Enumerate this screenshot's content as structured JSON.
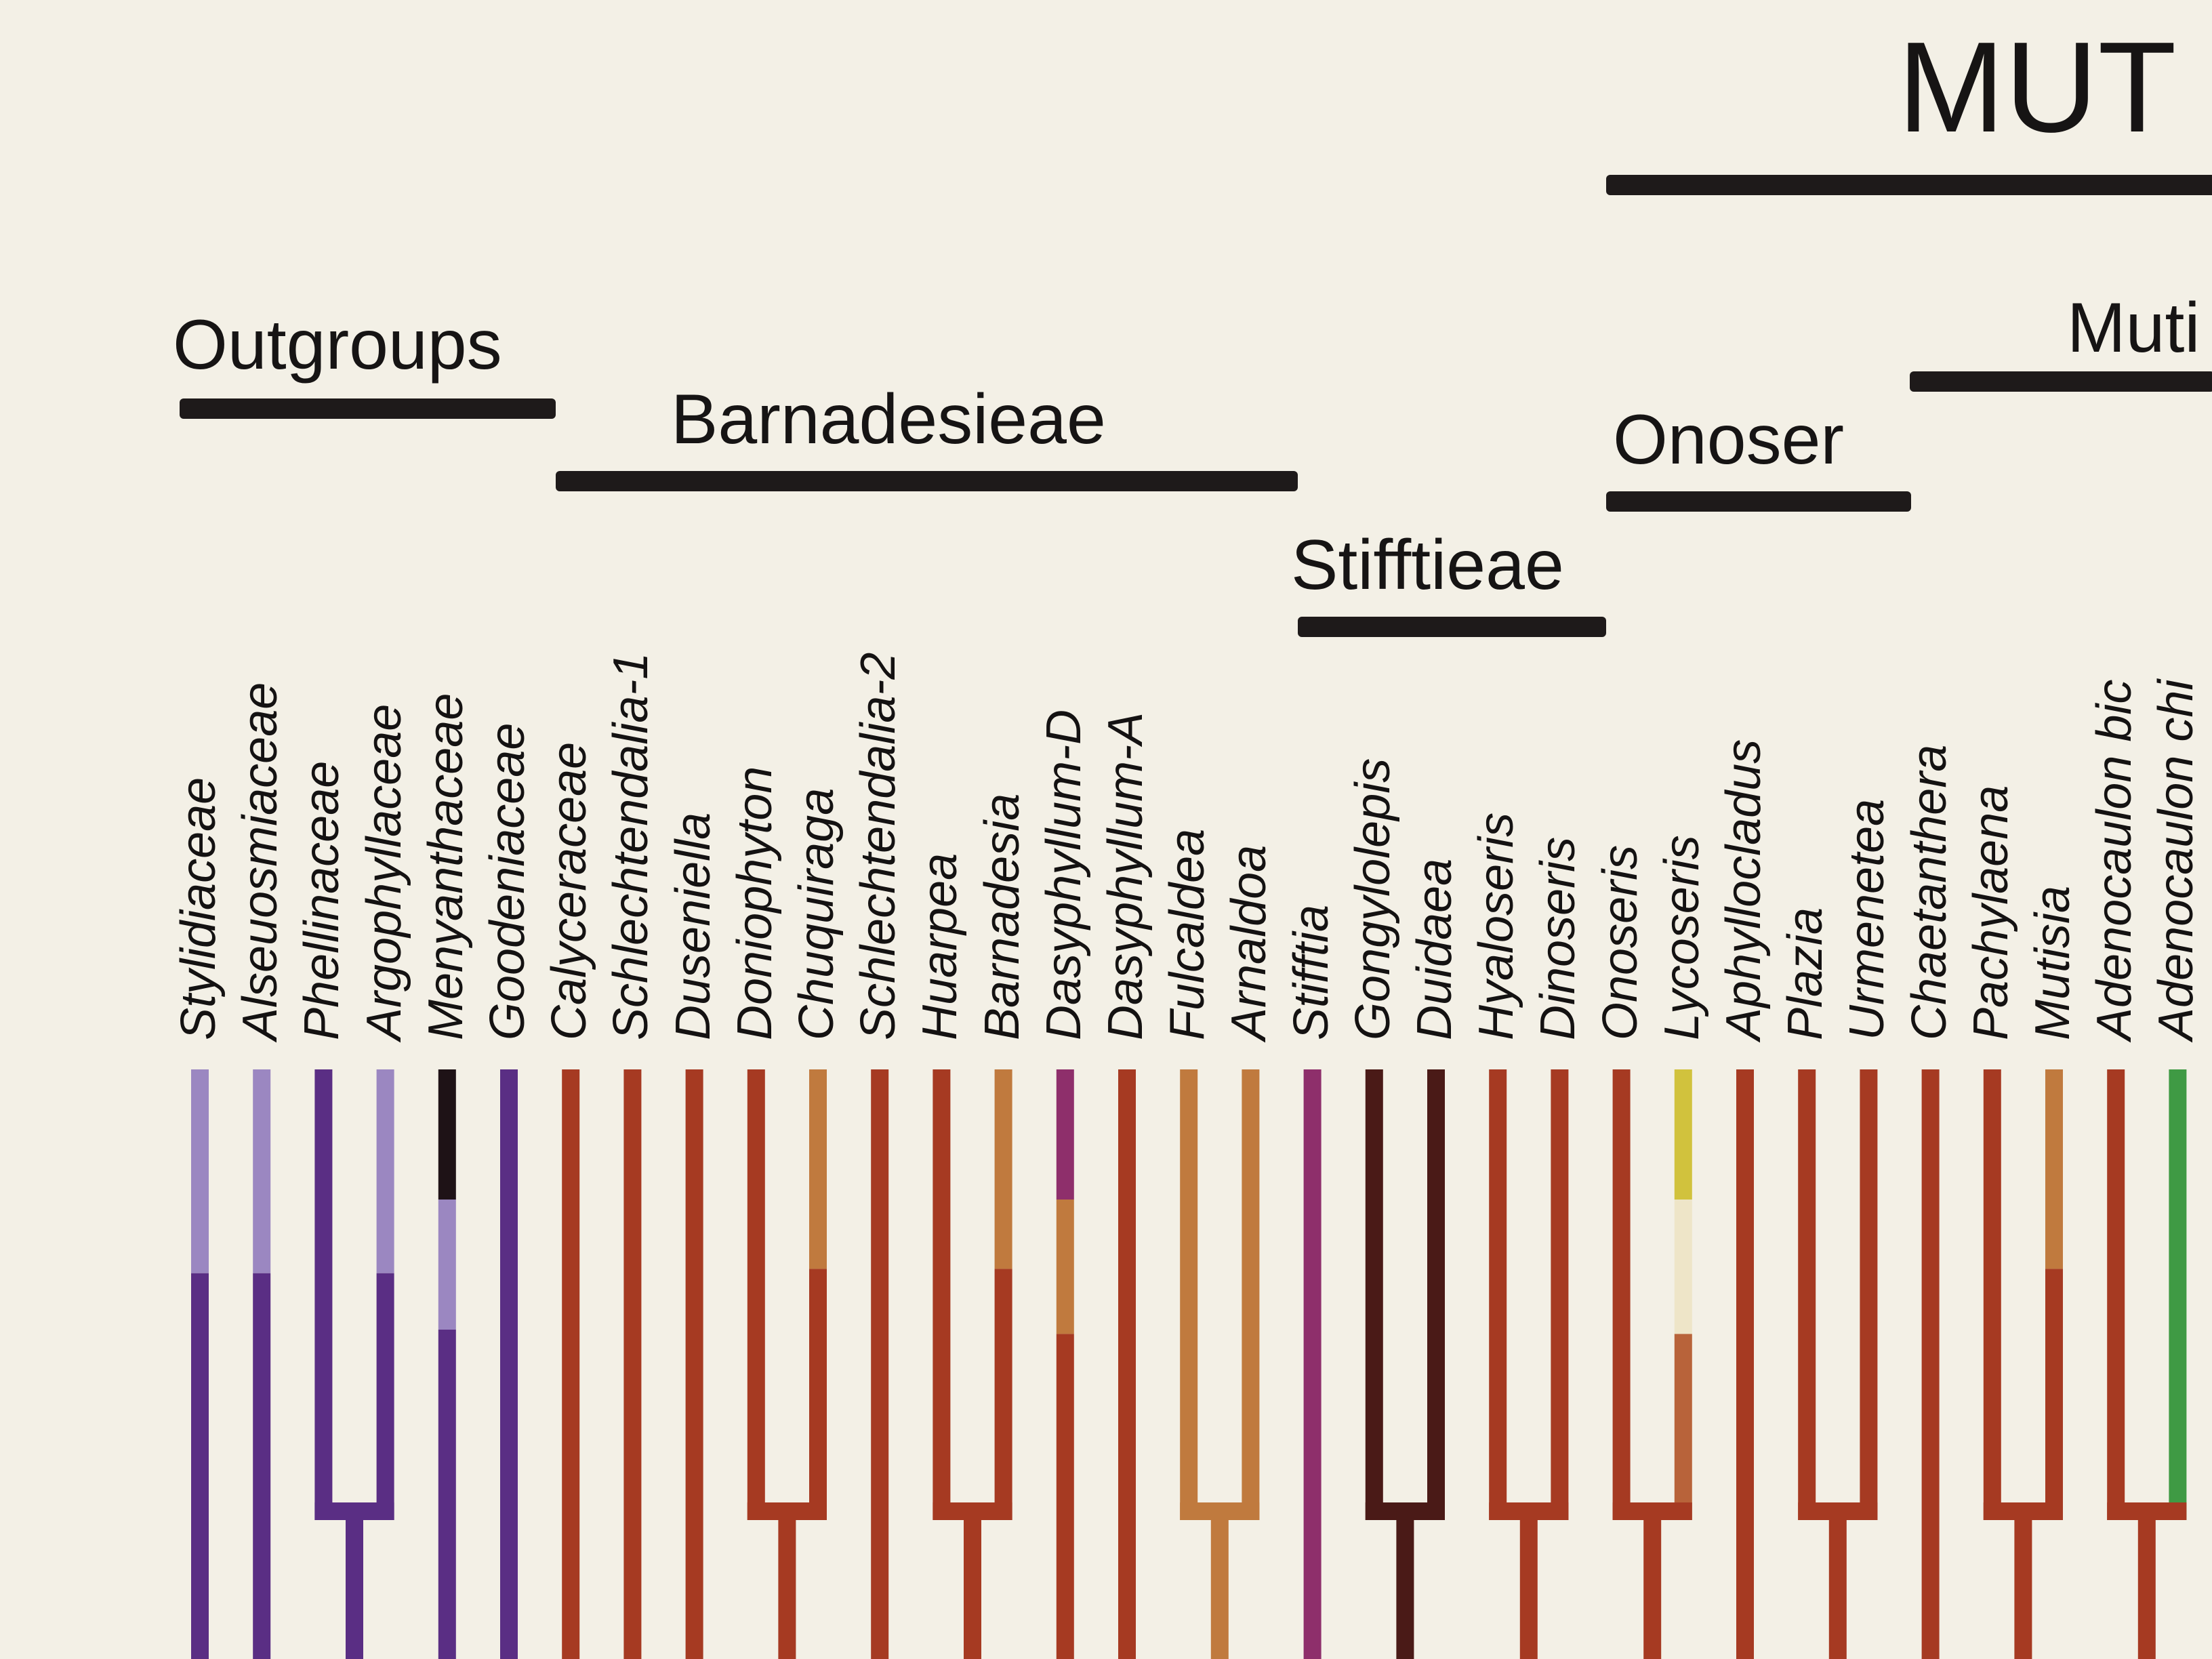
{
  "title": "MUT",
  "groups": {
    "outgroups": "Outgroups",
    "barnadesieae": "Barnadesieae",
    "stifftieae": "Stifftieae",
    "onoser": "Onoser",
    "muti": "Muti"
  },
  "taxa": [
    {
      "name": "Stylidiaceae",
      "segments": [
        {
          "color": "#9b87c1",
          "from": 0,
          "to": 0.47
        },
        {
          "color": "#5a2e84",
          "from": 0.47,
          "to": 1
        }
      ]
    },
    {
      "name": "Alseuosmiaceae",
      "segments": [
        {
          "color": "#9b87c1",
          "from": 0,
          "to": 0.47
        },
        {
          "color": "#5a2e84",
          "from": 0.47,
          "to": 1
        }
      ]
    },
    {
      "name": "Phellinaceae",
      "segments": [
        {
          "color": "#5a2e84",
          "from": 0,
          "to": 1
        }
      ]
    },
    {
      "name": "Argophyllaceae",
      "segments": [
        {
          "color": "#9b87c1",
          "from": 0,
          "to": 0.47
        },
        {
          "color": "#5a2e84",
          "from": 0.47,
          "to": 1
        }
      ]
    },
    {
      "name": "Menyanthaceae",
      "segments": [
        {
          "color": "#1e1216",
          "from": 0,
          "to": 0.3
        },
        {
          "color": "#9b87c1",
          "from": 0.3,
          "to": 0.6
        },
        {
          "color": "#5a2e84",
          "from": 0.6,
          "to": 1
        }
      ]
    },
    {
      "name": "Goodeniaceae",
      "segments": [
        {
          "color": "#5a2e84",
          "from": 0,
          "to": 1
        }
      ]
    },
    {
      "name": "Calyceraceae",
      "segments": [
        {
          "color": "#a63a22",
          "from": 0,
          "to": 1
        }
      ]
    },
    {
      "name": "Schlechtendalia-1",
      "segments": [
        {
          "color": "#a63a22",
          "from": 0,
          "to": 1
        }
      ]
    },
    {
      "name": "Duseniella",
      "segments": [
        {
          "color": "#a63a22",
          "from": 0,
          "to": 1
        }
      ]
    },
    {
      "name": "Doniophyton",
      "segments": [
        {
          "color": "#a63a22",
          "from": 0,
          "to": 1
        }
      ]
    },
    {
      "name": "Chuquiraga",
      "segments": [
        {
          "color": "#c07a3e",
          "from": 0,
          "to": 0.46
        },
        {
          "color": "#a63a22",
          "from": 0.46,
          "to": 1
        }
      ]
    },
    {
      "name": "Schlechtendalia-2",
      "segments": [
        {
          "color": "#a63a22",
          "from": 0,
          "to": 1
        }
      ]
    },
    {
      "name": "Huarpea",
      "segments": [
        {
          "color": "#a63a22",
          "from": 0,
          "to": 1
        }
      ]
    },
    {
      "name": "Barnadesia",
      "segments": [
        {
          "color": "#c07a3e",
          "from": 0,
          "to": 0.46
        },
        {
          "color": "#a63a22",
          "from": 0.46,
          "to": 1
        }
      ]
    },
    {
      "name": "Dasyphyllum-D",
      "segments": [
        {
          "color": "#8e2f6b",
          "from": 0,
          "to": 0.3
        },
        {
          "color": "#c07a3e",
          "from": 0.3,
          "to": 0.61
        },
        {
          "color": "#a63a22",
          "from": 0.61,
          "to": 1
        }
      ]
    },
    {
      "name": "Dasyphyllum-A",
      "segments": [
        {
          "color": "#a63a22",
          "from": 0,
          "to": 1
        }
      ]
    },
    {
      "name": "Fulcaldea",
      "segments": [
        {
          "color": "#c07a3e",
          "from": 0,
          "to": 1
        }
      ]
    },
    {
      "name": "Arnaldoa",
      "segments": [
        {
          "color": "#c07a3e",
          "from": 0,
          "to": 1
        }
      ]
    },
    {
      "name": "Stifftia",
      "segments": [
        {
          "color": "#8e2f6b",
          "from": 0,
          "to": 1
        }
      ]
    },
    {
      "name": "Gongylolepis",
      "segments": [
        {
          "color": "#4a1a17",
          "from": 0,
          "to": 1
        }
      ]
    },
    {
      "name": "Duidaea",
      "segments": [
        {
          "color": "#4a1a17",
          "from": 0,
          "to": 1
        }
      ]
    },
    {
      "name": "Hyaloseris",
      "segments": [
        {
          "color": "#a63a22",
          "from": 0,
          "to": 1
        }
      ]
    },
    {
      "name": "Dinoseris",
      "segments": [
        {
          "color": "#a63a22",
          "from": 0,
          "to": 1
        }
      ]
    },
    {
      "name": "Onoseris",
      "segments": [
        {
          "color": "#a63a22",
          "from": 0,
          "to": 1
        }
      ]
    },
    {
      "name": "Lycoseris",
      "segments": [
        {
          "color": "#d1c23d",
          "from": 0,
          "to": 0.3
        },
        {
          "color": "#eee5c8",
          "from": 0.3,
          "to": 0.61
        },
        {
          "color": "#b8633a",
          "from": 0.61,
          "to": 1
        }
      ]
    },
    {
      "name": "Aphyllocladus",
      "segments": [
        {
          "color": "#a63a22",
          "from": 0,
          "to": 1
        }
      ]
    },
    {
      "name": "Plazia",
      "segments": [
        {
          "color": "#a63a22",
          "from": 0,
          "to": 1
        }
      ]
    },
    {
      "name": "Urmenetea",
      "segments": [
        {
          "color": "#a63a22",
          "from": 0,
          "to": 1
        }
      ]
    },
    {
      "name": "Chaetanthera",
      "segments": [
        {
          "color": "#a63a22",
          "from": 0,
          "to": 1
        }
      ]
    },
    {
      "name": "Pachylaena",
      "segments": [
        {
          "color": "#a63a22",
          "from": 0,
          "to": 1
        }
      ]
    },
    {
      "name": "Mutisia",
      "segments": [
        {
          "color": "#c07a3e",
          "from": 0,
          "to": 0.46
        },
        {
          "color": "#a63a22",
          "from": 0.46,
          "to": 1
        }
      ]
    },
    {
      "name": "Adenocaulon bic",
      "segments": [
        {
          "color": "#a63a22",
          "from": 0,
          "to": 1
        }
      ]
    },
    {
      "name": "Adenocaulon chi",
      "segments": [
        {
          "color": "#3f9a44",
          "from": 0,
          "to": 1
        }
      ]
    }
  ],
  "clades": [
    {
      "tips": [
        2,
        3
      ],
      "color": "#5a2e84"
    },
    {
      "tips": [
        9,
        10
      ],
      "color": "#a63a22"
    },
    {
      "tips": [
        12,
        13
      ],
      "color": "#a63a22"
    },
    {
      "tips": [
        16,
        17
      ],
      "color": "#c07a3e"
    },
    {
      "tips": [
        19,
        20
      ],
      "color": "#4a1a17"
    },
    {
      "tips": [
        21,
        22
      ],
      "color": "#a63a22"
    },
    {
      "tips": [
        23,
        24
      ],
      "color": "#a63a22"
    },
    {
      "tips": [
        26,
        27
      ],
      "color": "#a63a22"
    },
    {
      "tips": [
        29,
        30
      ],
      "color": "#a63a22"
    },
    {
      "tips": [
        31,
        32
      ],
      "color": "#a63a22"
    }
  ]
}
